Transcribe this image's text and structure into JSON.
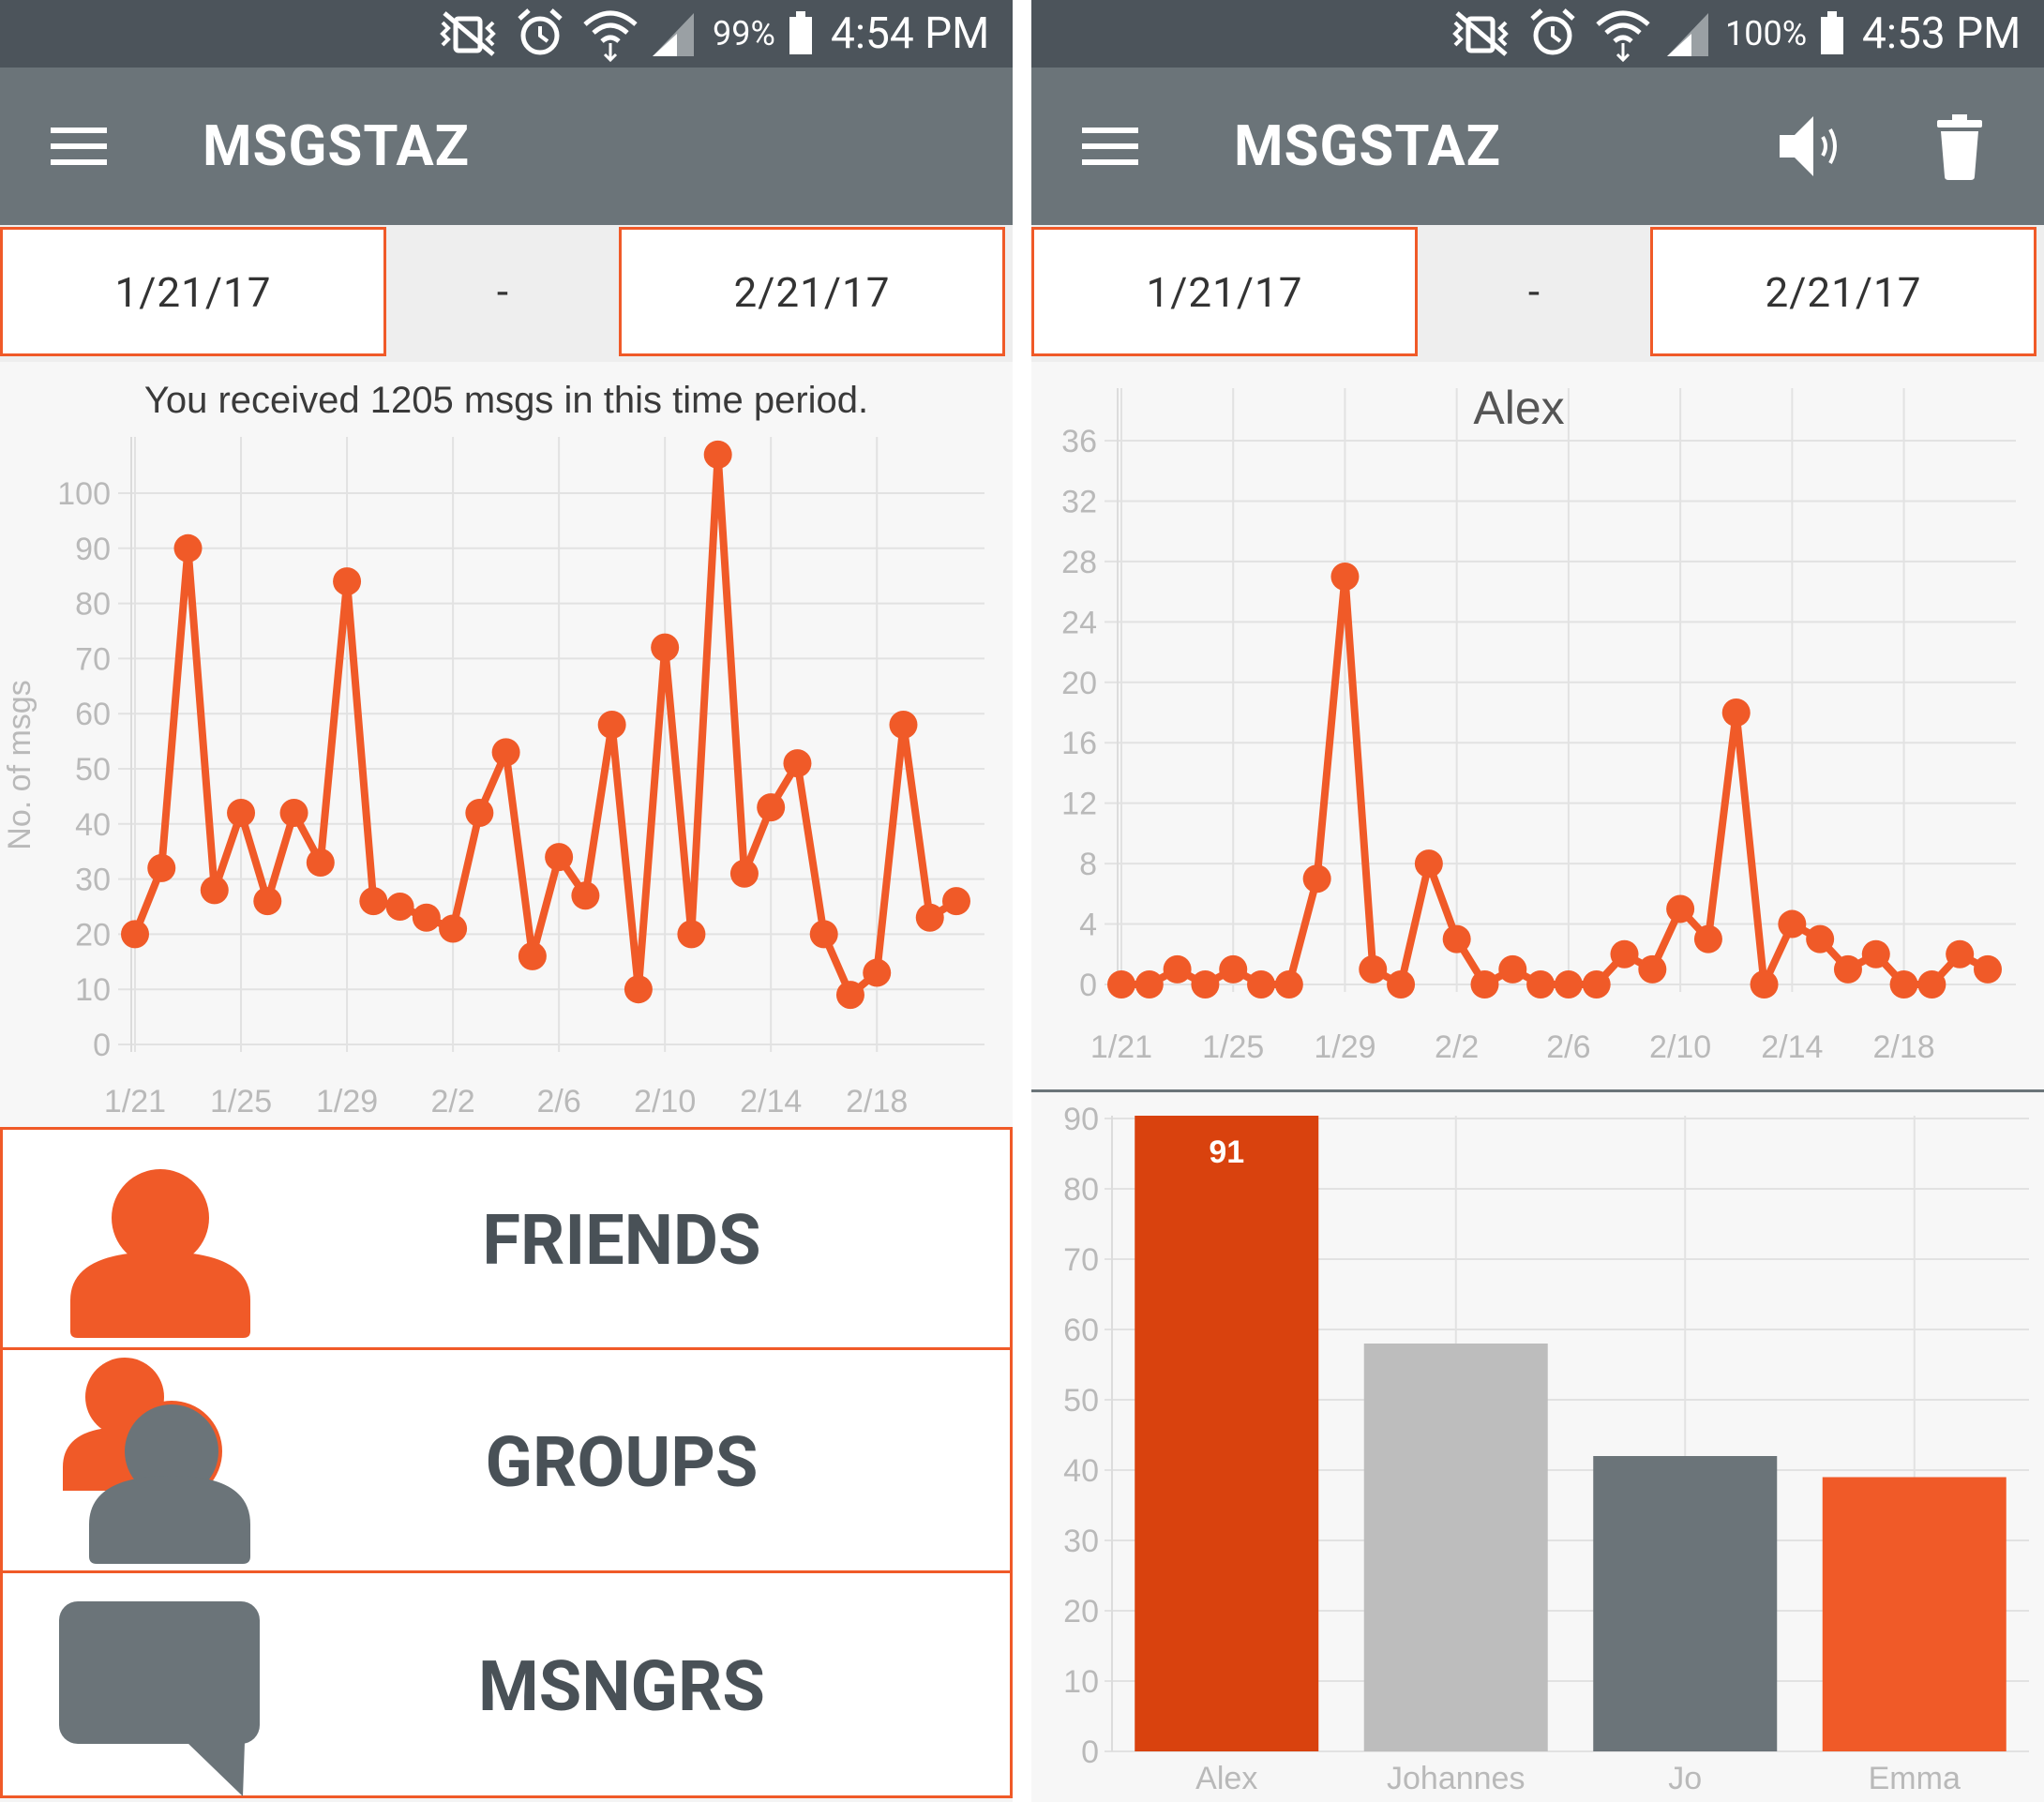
{
  "left": {
    "status": {
      "battery": "99%",
      "time": "4:54 PM"
    },
    "app_title": "MSGSTAZ",
    "date_start": "1/21/17",
    "date_sep": "-",
    "date_end": "2/21/17",
    "summary": "You received 1205 msgs in this time period.",
    "nav": {
      "friends": "FRIENDS",
      "groups": "GROUPS",
      "msngrs": "MSNGRS"
    }
  },
  "right": {
    "status": {
      "battery": "100%",
      "time": "4:53 PM"
    },
    "app_title": "MSGSTAZ",
    "date_start": "1/21/17",
    "date_sep": "-",
    "date_end": "2/21/17"
  },
  "colors": {
    "accent": "#f05a28",
    "accent_dark": "#d9420e",
    "appbar": "#6b7479",
    "statusbar": "#4c545b",
    "gray_light": "#bdbdbd",
    "gray_dark": "#6b7479"
  },
  "icons": [
    "menu-icon",
    "volume-icon",
    "trash-icon",
    "person-icon",
    "group-icon",
    "chat-bubble-icon",
    "alarm-icon",
    "wifi-icon",
    "signal-icon",
    "battery-icon",
    "vibrate-icon"
  ],
  "chart_data": [
    {
      "type": "line",
      "title": "",
      "xlabel": "",
      "ylabel": "No. of msgs",
      "ylim": [
        0,
        100
      ],
      "yticks": [
        0,
        10,
        20,
        30,
        40,
        50,
        60,
        70,
        80,
        90,
        100
      ],
      "xtick_labels": [
        "1/21",
        "1/25",
        "1/29",
        "2/2",
        "2/6",
        "2/10",
        "2/14",
        "2/18"
      ],
      "grid": true,
      "x": [
        "1/21",
        "1/22",
        "1/23",
        "1/24",
        "1/25",
        "1/26",
        "1/27",
        "1/28",
        "1/29",
        "1/30",
        "1/31",
        "2/1",
        "2/2",
        "2/3",
        "2/4",
        "2/5",
        "2/6",
        "2/7",
        "2/8",
        "2/9",
        "2/10",
        "2/11",
        "2/12",
        "2/13",
        "2/14",
        "2/15",
        "2/16",
        "2/17",
        "2/18",
        "2/19",
        "2/20",
        "2/21"
      ],
      "values": [
        20,
        32,
        90,
        28,
        42,
        26,
        42,
        33,
        84,
        26,
        25,
        23,
        21,
        42,
        53,
        16,
        34,
        27,
        58,
        10,
        72,
        20,
        107,
        31,
        43,
        51,
        20,
        9,
        13,
        58,
        23,
        26
      ]
    },
    {
      "type": "line",
      "title": "Alex",
      "xlabel": "",
      "ylabel": "",
      "ylim": [
        0,
        36
      ],
      "yticks": [
        0,
        4,
        8,
        12,
        16,
        20,
        24,
        28,
        32,
        36
      ],
      "xtick_labels": [
        "1/21",
        "1/25",
        "1/29",
        "2/2",
        "2/6",
        "2/10",
        "2/14",
        "2/18"
      ],
      "grid": true,
      "x": [
        "1/21",
        "1/22",
        "1/23",
        "1/24",
        "1/25",
        "1/26",
        "1/27",
        "1/28",
        "1/29",
        "1/30",
        "1/31",
        "2/1",
        "2/2",
        "2/3",
        "2/4",
        "2/5",
        "2/6",
        "2/7",
        "2/8",
        "2/9",
        "2/10",
        "2/11",
        "2/12",
        "2/13",
        "2/14",
        "2/15",
        "2/16",
        "2/17",
        "2/18",
        "2/19",
        "2/20",
        "2/21"
      ],
      "values": [
        0,
        0,
        1,
        0,
        1,
        0,
        0,
        7,
        27,
        1,
        0,
        8,
        3,
        0,
        1,
        0,
        0,
        0,
        2,
        1,
        5,
        3,
        18,
        0,
        4,
        3,
        1,
        2,
        0,
        0,
        2,
        1
      ]
    },
    {
      "type": "bar",
      "title": "",
      "xlabel": "",
      "ylabel": "",
      "ylim": [
        0,
        90
      ],
      "yticks": [
        0,
        10,
        20,
        30,
        40,
        50,
        60,
        70,
        80,
        90
      ],
      "grid": true,
      "categories": [
        "Alex",
        "Johannes",
        "Jo",
        "Emma"
      ],
      "values": [
        91,
        58,
        42,
        39
      ],
      "bar_colors": [
        "#d9420e",
        "#bdbdbd",
        "#6b7479",
        "#f05a28"
      ],
      "data_labels": [
        "91",
        "",
        "",
        ""
      ]
    }
  ]
}
